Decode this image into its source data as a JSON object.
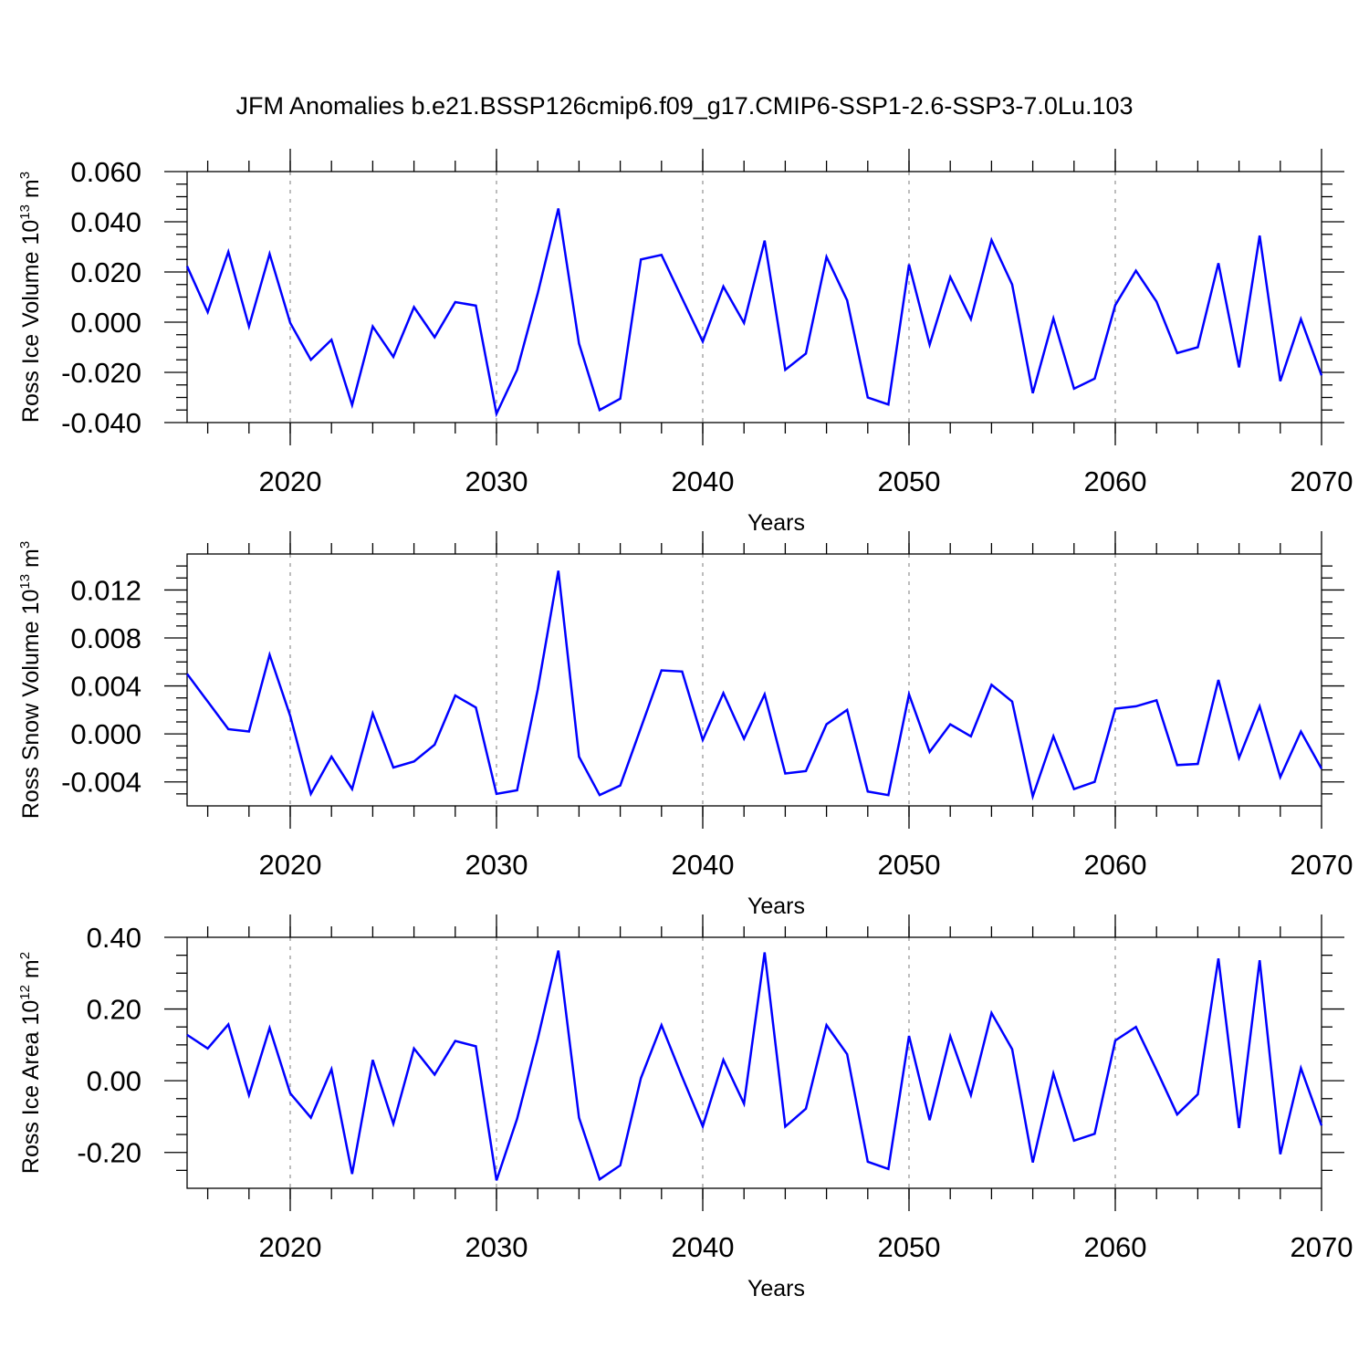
{
  "title": "JFM Anomalies b.e21.BSSP126cmip6.f09_g17.CMIP6-SSP1-2.6-SSP3-7.0Lu.103",
  "chart_data": [
    {
      "type": "line",
      "xlabel": "Years",
      "ylabel": "Ross Ice Volume 10",
      "ylabel_sup": "13",
      "ylabel_unit": "m",
      "ylabel_unit_sup": "3",
      "xlim": [
        2015,
        2070
      ],
      "ylim": [
        -0.04,
        0.06
      ],
      "xticks": [
        2020,
        2030,
        2040,
        2050,
        2060,
        2070
      ],
      "yticks": [
        -0.04,
        -0.02,
        0.0,
        0.02,
        0.04,
        0.06
      ],
      "ytick_labels": [
        "-0.040",
        "-0.020",
        "0.000",
        "0.020",
        "0.040",
        "0.060"
      ],
      "line_color": "#0000ff",
      "x": [
        2015,
        2016,
        2017,
        2018,
        2019,
        2020,
        2021,
        2022,
        2023,
        2024,
        2025,
        2026,
        2027,
        2028,
        2029,
        2030,
        2031,
        2032,
        2033,
        2034,
        2035,
        2036,
        2037,
        2038,
        2039,
        2040,
        2041,
        2042,
        2043,
        2044,
        2045,
        2046,
        2047,
        2048,
        2049,
        2050,
        2051,
        2052,
        2053,
        2054,
        2055,
        2056,
        2057,
        2058,
        2059,
        2060,
        2061,
        2062,
        2063,
        2064,
        2065,
        2066,
        2067,
        2068,
        2069,
        2070
      ],
      "values": [
        0.0223,
        0.004,
        0.028,
        -0.0017,
        0.0272,
        -0.0003,
        -0.015,
        -0.007,
        -0.033,
        -0.0017,
        -0.0138,
        0.006,
        -0.006,
        0.008,
        0.0066,
        -0.0365,
        -0.019,
        0.0115,
        0.0453,
        -0.0085,
        -0.035,
        -0.0305,
        0.025,
        0.0268,
        0.0095,
        -0.0077,
        0.0142,
        -0.0003,
        0.0325,
        -0.019,
        -0.0125,
        0.026,
        0.0087,
        -0.03,
        -0.0328,
        0.023,
        -0.009,
        0.018,
        0.0012,
        0.0327,
        0.015,
        -0.0283,
        0.0015,
        -0.0265,
        -0.0225,
        0.0068,
        0.0205,
        0.0082,
        -0.0123,
        -0.01,
        0.0235,
        -0.018,
        0.0345,
        -0.0235,
        0.0012,
        -0.0212
      ]
    },
    {
      "type": "line",
      "xlabel": "Years",
      "ylabel": "Ross Snow Volume 10",
      "ylabel_sup": "13",
      "ylabel_unit": "m",
      "ylabel_unit_sup": "3",
      "xlim": [
        2015,
        2070
      ],
      "ylim": [
        -0.006,
        0.015
      ],
      "xticks": [
        2020,
        2030,
        2040,
        2050,
        2060,
        2070
      ],
      "yticks": [
        -0.004,
        0.0,
        0.004,
        0.008,
        0.012
      ],
      "ytick_labels": [
        "-0.004",
        "0.000",
        "0.004",
        "0.008",
        "0.012"
      ],
      "line_color": "#0000ff",
      "x": [
        2015,
        2016,
        2017,
        2018,
        2019,
        2020,
        2021,
        2022,
        2023,
        2024,
        2025,
        2026,
        2027,
        2028,
        2029,
        2030,
        2031,
        2032,
        2033,
        2034,
        2035,
        2036,
        2037,
        2038,
        2039,
        2040,
        2041,
        2042,
        2043,
        2044,
        2045,
        2046,
        2047,
        2048,
        2049,
        2050,
        2051,
        2052,
        2053,
        2054,
        2055,
        2056,
        2057,
        2058,
        2059,
        2060,
        2061,
        2062,
        2063,
        2064,
        2065,
        2066,
        2067,
        2068,
        2069,
        2070
      ],
      "values": [
        0.005,
        0.0027,
        0.0004,
        0.0002,
        0.0066,
        0.0015,
        -0.005,
        -0.0019,
        -0.0046,
        0.0017,
        -0.0028,
        -0.0023,
        -0.0009,
        0.0032,
        0.0022,
        -0.005,
        -0.0047,
        0.0037,
        0.0136,
        -0.0019,
        -0.0051,
        -0.0043,
        0.0005,
        0.0053,
        0.0052,
        -0.0005,
        0.0034,
        -0.0004,
        0.0033,
        -0.0033,
        -0.0031,
        0.0008,
        0.002,
        -0.0048,
        -0.0051,
        0.0033,
        -0.0015,
        0.0008,
        -0.0002,
        0.0041,
        0.0027,
        -0.0052,
        -0.0002,
        -0.0046,
        -0.004,
        0.0021,
        0.0023,
        0.0028,
        -0.0026,
        -0.0025,
        0.0045,
        -0.002,
        0.0023,
        -0.0036,
        0.0002,
        -0.0029
      ]
    },
    {
      "type": "line",
      "xlabel": "Years",
      "ylabel": "Ross Ice Area 10",
      "ylabel_sup": "12",
      "ylabel_unit": "m",
      "ylabel_unit_sup": "2",
      "xlim": [
        2015,
        2070
      ],
      "ylim": [
        -0.3,
        0.4
      ],
      "xticks": [
        2020,
        2030,
        2040,
        2050,
        2060,
        2070
      ],
      "yticks": [
        -0.2,
        0.0,
        0.2,
        0.4
      ],
      "ytick_labels": [
        "-0.20",
        "0.00",
        "0.20",
        "0.40"
      ],
      "line_color": "#0000ff",
      "x": [
        2015,
        2016,
        2017,
        2018,
        2019,
        2020,
        2021,
        2022,
        2023,
        2024,
        2025,
        2026,
        2027,
        2028,
        2029,
        2030,
        2031,
        2032,
        2033,
        2034,
        2035,
        2036,
        2037,
        2038,
        2039,
        2040,
        2041,
        2042,
        2043,
        2044,
        2045,
        2046,
        2047,
        2048,
        2049,
        2050,
        2051,
        2052,
        2053,
        2054,
        2055,
        2056,
        2057,
        2058,
        2059,
        2060,
        2061,
        2062,
        2063,
        2064,
        2065,
        2066,
        2067,
        2068,
        2069,
        2070
      ],
      "values": [
        0.128,
        0.09,
        0.157,
        -0.04,
        0.147,
        -0.035,
        -0.103,
        0.032,
        -0.26,
        0.058,
        -0.12,
        0.09,
        0.017,
        0.111,
        0.096,
        -0.278,
        -0.106,
        0.117,
        0.363,
        -0.103,
        -0.275,
        -0.236,
        0.007,
        0.155,
        0.011,
        -0.127,
        0.058,
        -0.064,
        0.358,
        -0.128,
        -0.078,
        0.155,
        0.074,
        -0.226,
        -0.246,
        0.125,
        -0.11,
        0.124,
        -0.04,
        0.189,
        0.088,
        -0.228,
        0.02,
        -0.167,
        -0.148,
        0.112,
        0.15,
        0.03,
        -0.094,
        -0.038,
        0.341,
        -0.132,
        0.336,
        -0.205,
        0.035,
        -0.125
      ]
    }
  ]
}
